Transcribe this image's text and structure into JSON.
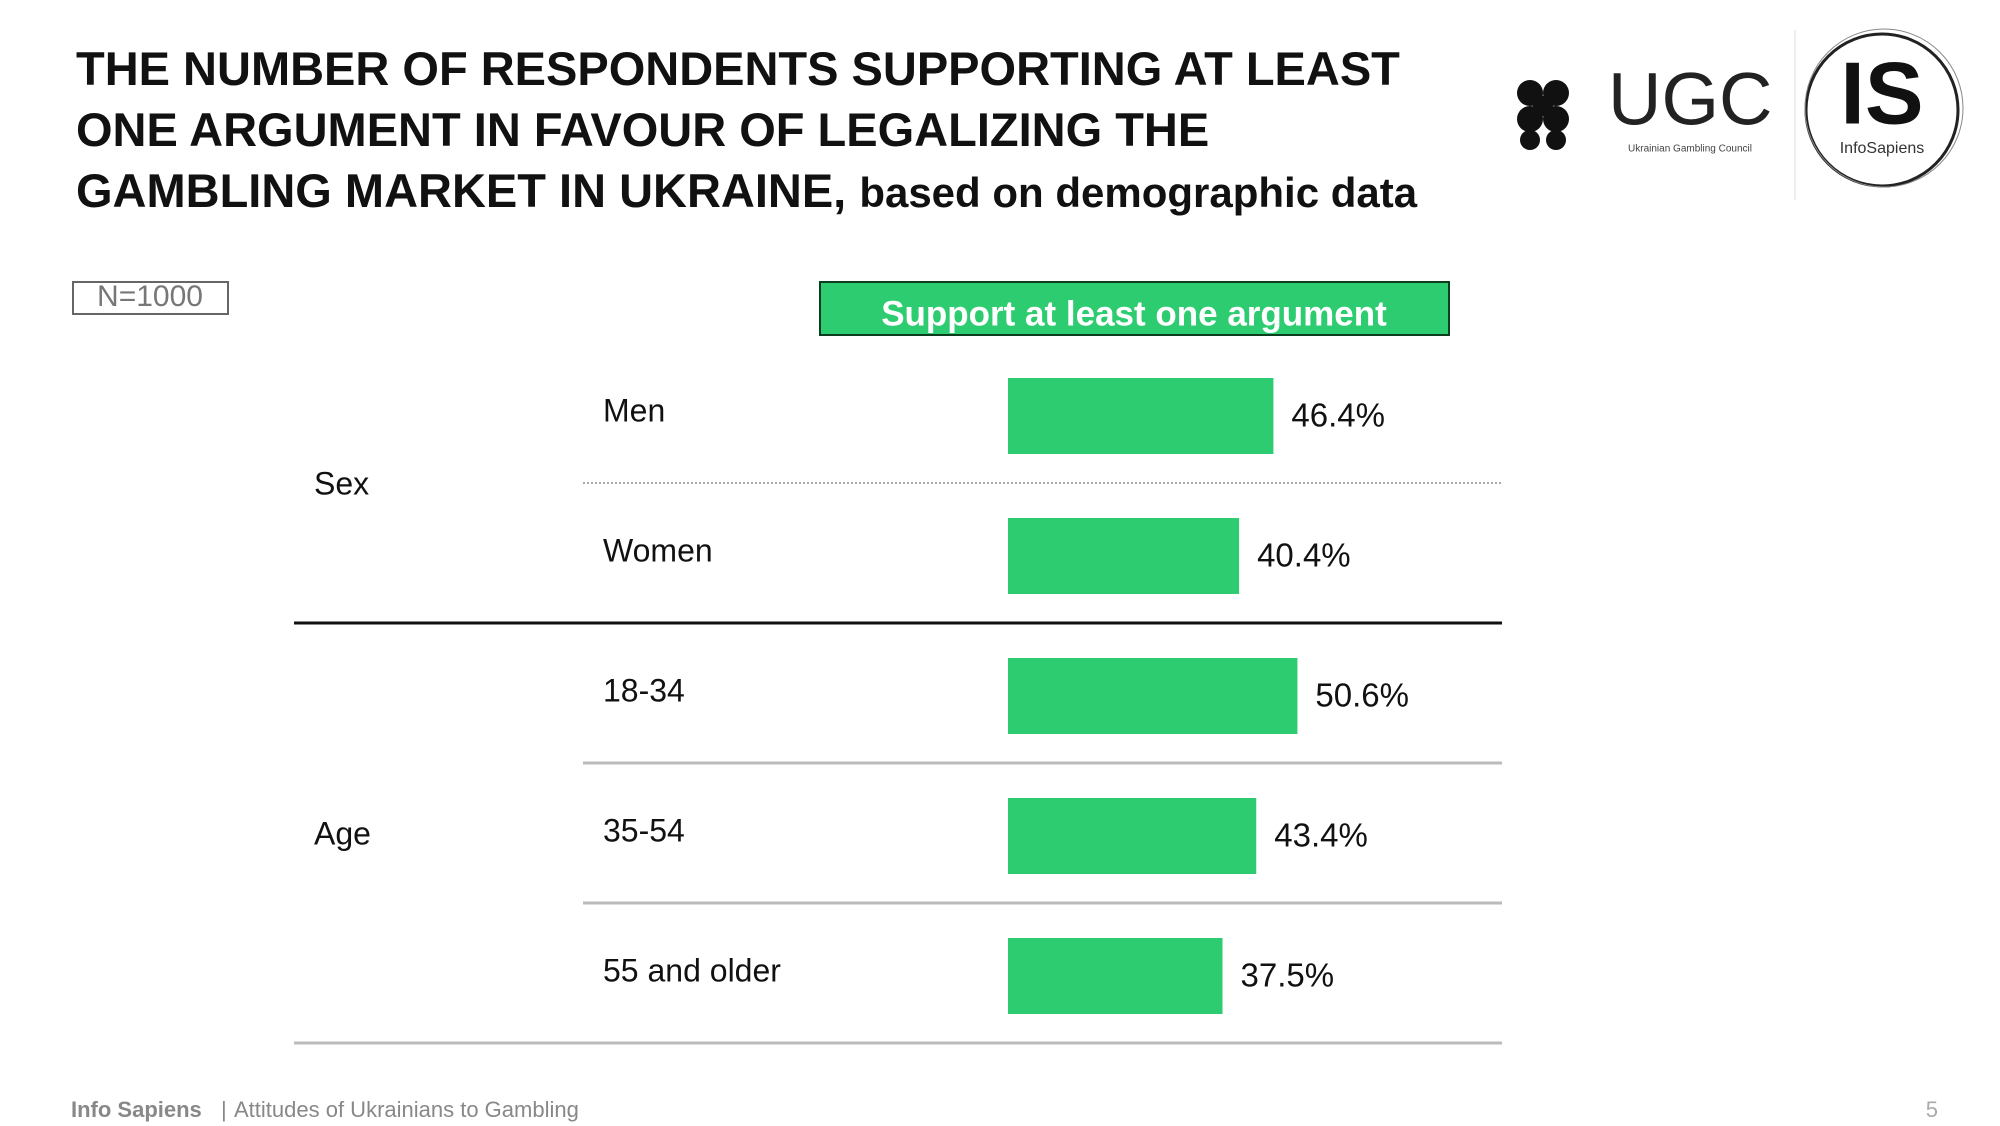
{
  "chart_data": {
    "type": "bar",
    "title": "THE NUMBER OF RESPONDENTS SUPPORTING AT LEAST ONE ARGUMENT IN FAVOUR OF LEGALIZING THE GAMBLING MARKET IN UKRAINE,",
    "subtitle": "based on demographic data",
    "sample_note": "N=1000",
    "column_header": "Support at least one argument",
    "color": "#2ecc71",
    "groups": [
      {
        "name": "Sex",
        "categories": [
          "Men",
          "Women"
        ],
        "values": [
          46.4,
          40.4
        ],
        "value_labels": [
          "46.4%",
          "40.4%"
        ]
      },
      {
        "name": "Age",
        "categories": [
          "18-34",
          "35-54",
          "55 and older"
        ],
        "values": [
          50.6,
          43.4,
          37.5
        ],
        "value_labels": [
          "50.6%",
          "43.4%",
          "37.5%"
        ]
      }
    ],
    "logos": {
      "ugc": "UGC",
      "ugc_caption": "Ukrainian Gambling Council",
      "is": "IS",
      "is_caption": "InfoSapiens"
    },
    "footer": {
      "brand": "Info Sapiens",
      "separator": "|",
      "text": "Attitudes of Ukrainians to Gambling",
      "page": "5"
    }
  }
}
